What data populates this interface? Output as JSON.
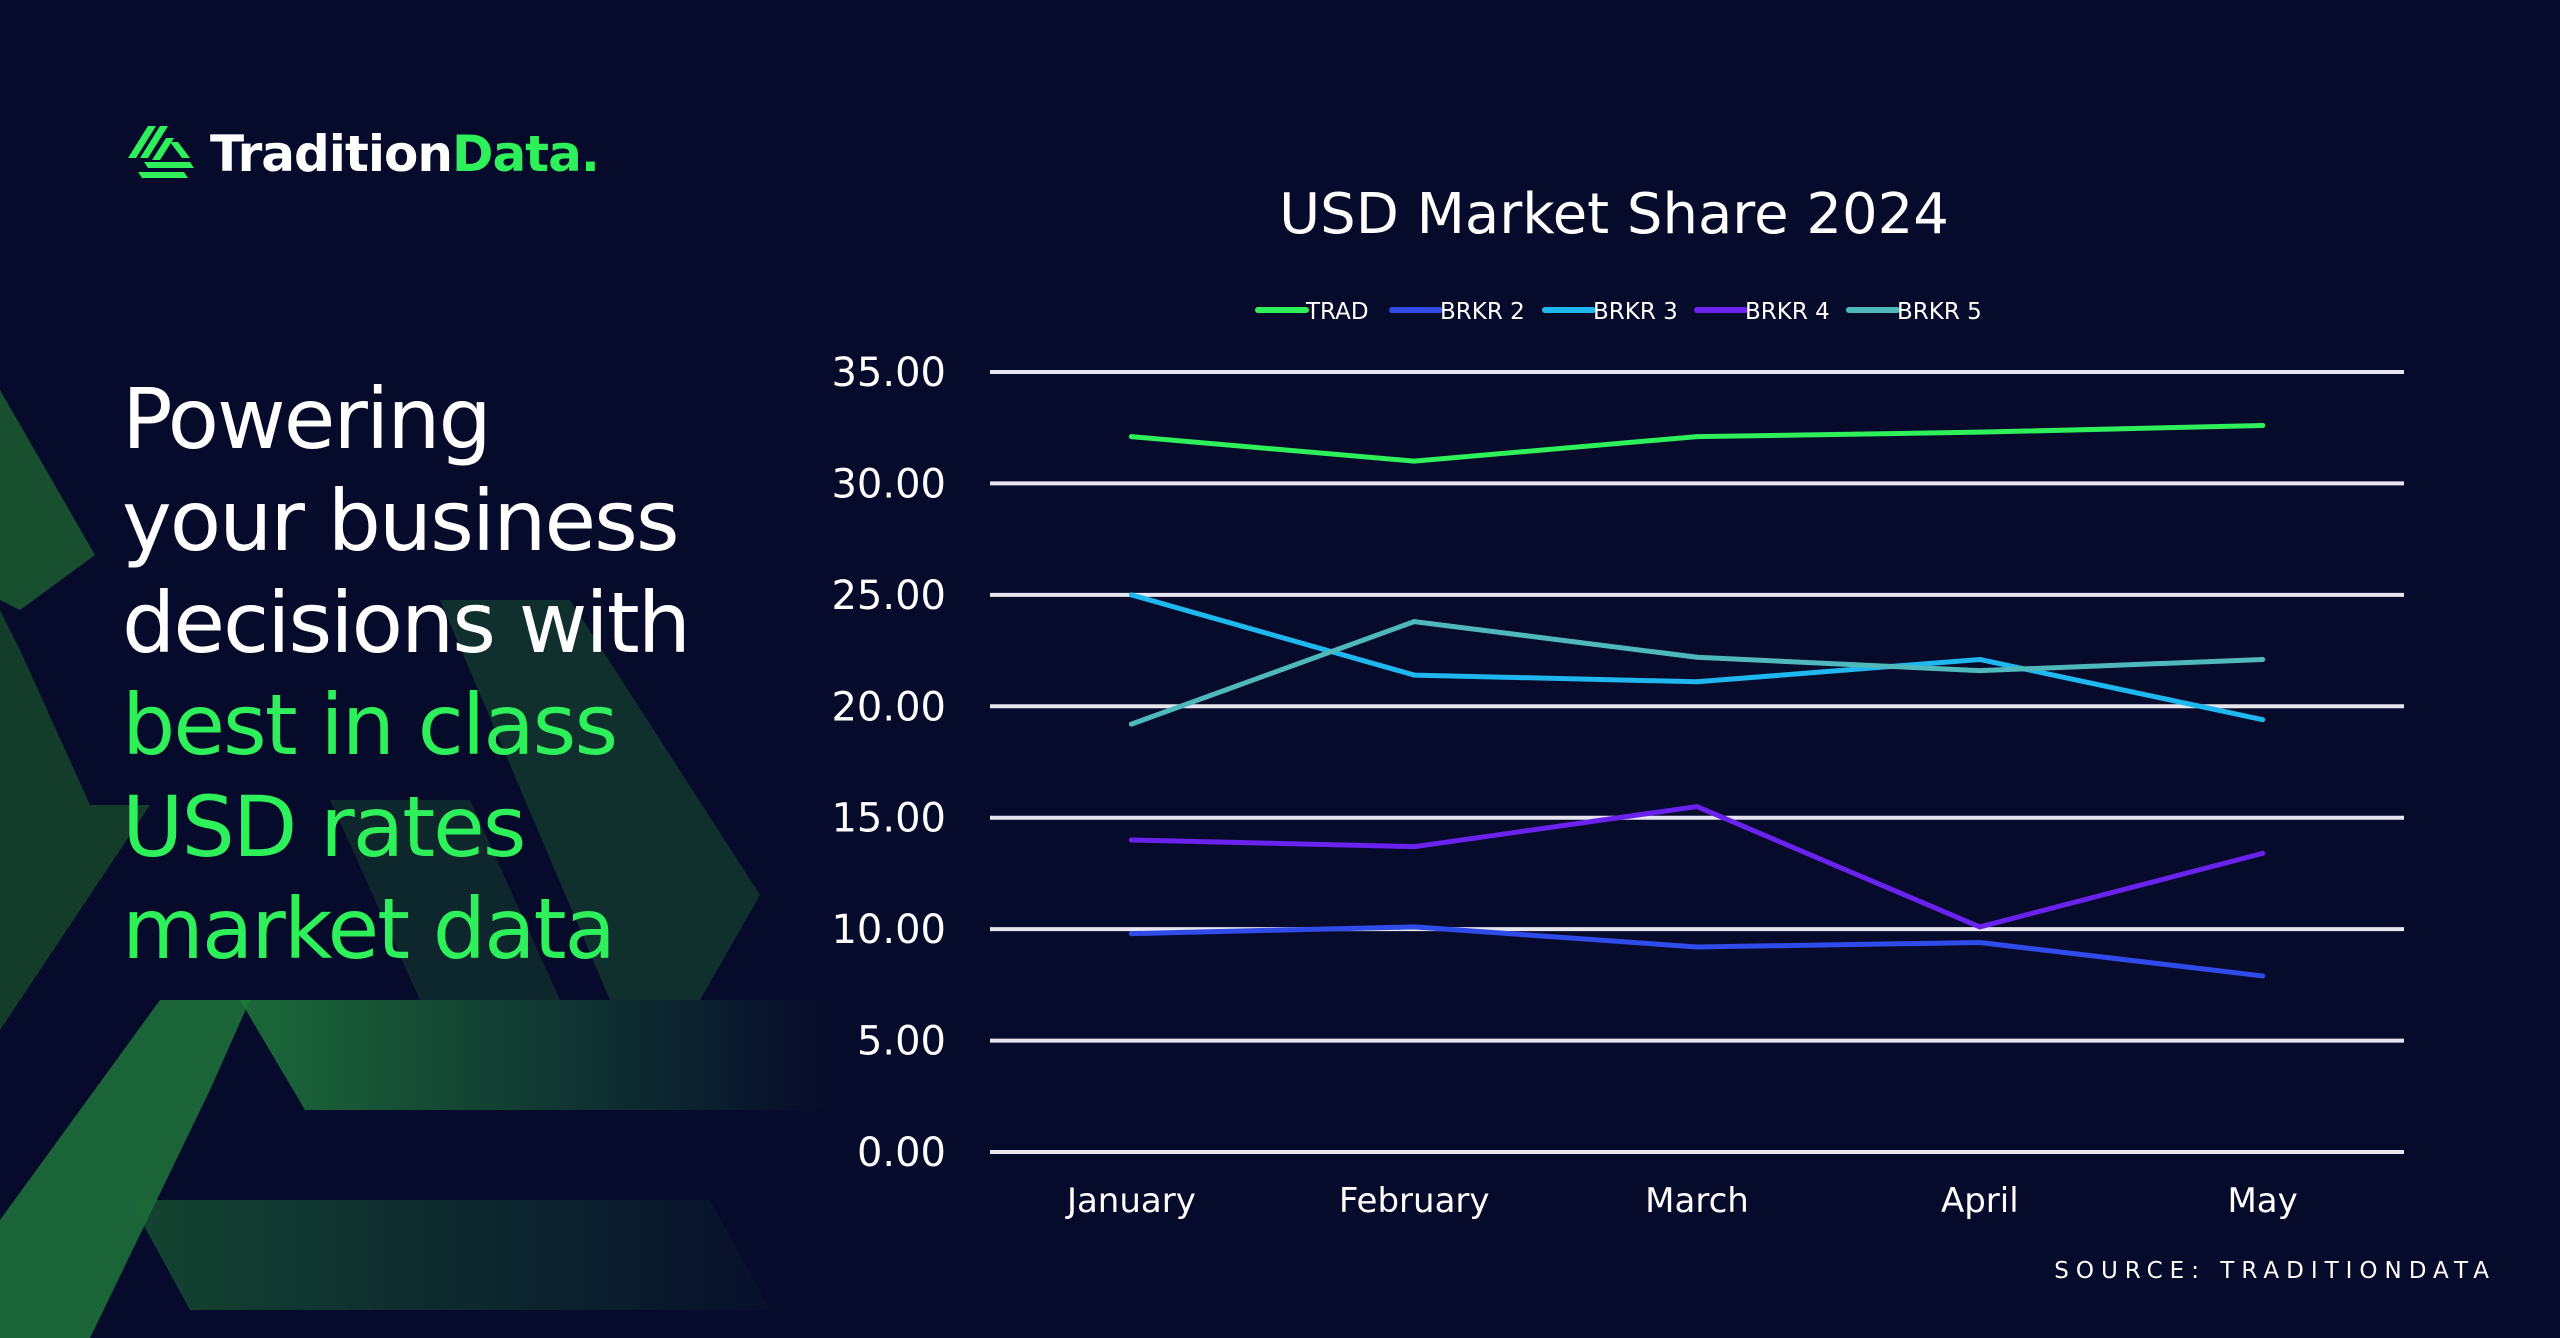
{
  "brand": {
    "name_part1": "Tradition",
    "name_part2": "Data.",
    "accent_color": "#2df05a",
    "background_color": "#070b2b"
  },
  "headline": {
    "line1": "Powering",
    "line2": "your business",
    "line3": "decisions with",
    "line4": "best in class",
    "line5": "USD rates",
    "line6": "market data"
  },
  "source": "SOURCE: TRADITIONDATA",
  "chart_data": {
    "type": "line",
    "title": "USD Market Share 2024",
    "xlabel": "",
    "ylabel": "",
    "categories": [
      "January",
      "February",
      "March",
      "April",
      "May"
    ],
    "ylim": [
      0,
      35
    ],
    "yticks": [
      "0.00",
      "5.00",
      "10.00",
      "15.00",
      "20.00",
      "25.00",
      "30.00",
      "35.00"
    ],
    "grid": true,
    "legend_position": "top",
    "series": [
      {
        "name": "TRAD",
        "color": "#2df05a",
        "values": [
          32.1,
          31.0,
          32.1,
          32.3,
          32.6
        ]
      },
      {
        "name": "BRKR 2",
        "color": "#2f4bea",
        "values": [
          9.8,
          10.1,
          9.2,
          9.4,
          7.9
        ]
      },
      {
        "name": "BRKR 3",
        "color": "#1fb7f0",
        "values": [
          25.0,
          21.4,
          21.1,
          22.1,
          19.4
        ]
      },
      {
        "name": "BRKR 4",
        "color": "#6a22ee",
        "values": [
          14.0,
          13.7,
          15.5,
          10.1,
          13.4
        ]
      },
      {
        "name": "BRKR 5",
        "color": "#4fb8bb",
        "values": [
          19.2,
          23.8,
          22.2,
          21.6,
          22.1
        ]
      }
    ]
  }
}
